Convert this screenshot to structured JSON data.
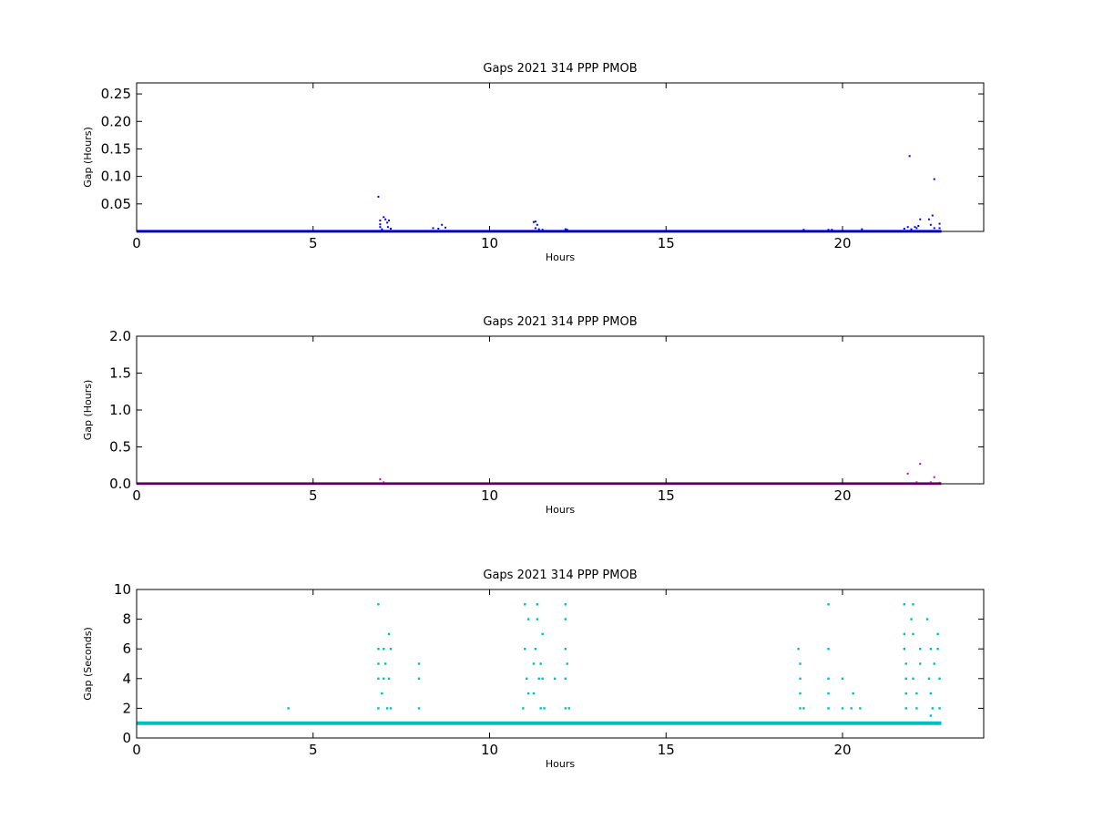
{
  "chart_data": [
    {
      "type": "scatter",
      "title": "Gaps 2021 314 PPP  PMOB",
      "xlabel": "Hours",
      "ylabel": "Gap (Hours)",
      "xlim": [
        0,
        24
      ],
      "ylim": [
        0,
        0.27
      ],
      "xticks": [
        0,
        5,
        10,
        15,
        20
      ],
      "xtick_labels": [
        "0",
        "5",
        "10",
        "15",
        "20"
      ],
      "yticks": [
        0.05,
        0.1,
        0.15,
        0.2,
        0.25
      ],
      "ytick_labels": [
        "0.05",
        "0.10",
        "0.15",
        "0.20",
        "0.25"
      ],
      "color": "#0000ff",
      "baseline": {
        "name": "baseline",
        "x_range": [
          0,
          22.8
        ],
        "y": 0.0003
      },
      "series": [
        {
          "points": [
            [
              6.85,
              0.063
            ],
            [
              6.9,
              0.02
            ],
            [
              6.9,
              0.013
            ],
            [
              6.9,
              0.008
            ],
            [
              6.95,
              0.004
            ],
            [
              7.0,
              0.026
            ],
            [
              7.05,
              0.022
            ],
            [
              7.1,
              0.016
            ],
            [
              7.15,
              0.02
            ],
            [
              7.12,
              0.008
            ],
            [
              7.2,
              0.005
            ],
            [
              8.4,
              0.006
            ],
            [
              8.55,
              0.005
            ],
            [
              8.65,
              0.012
            ],
            [
              8.75,
              0.007
            ],
            [
              11.25,
              0.017
            ],
            [
              11.3,
              0.018
            ],
            [
              11.35,
              0.012
            ],
            [
              11.3,
              0.006
            ],
            [
              11.4,
              0.004
            ],
            [
              11.5,
              0.003
            ],
            [
              12.15,
              0.004
            ],
            [
              12.2,
              0.003
            ],
            [
              18.9,
              0.003
            ],
            [
              19.6,
              0.003
            ],
            [
              19.7,
              0.003
            ],
            [
              20.55,
              0.004
            ],
            [
              21.75,
              0.005
            ],
            [
              21.85,
              0.008
            ],
            [
              21.9,
              0.137
            ],
            [
              21.95,
              0.004
            ],
            [
              22.05,
              0.008
            ],
            [
              22.15,
              0.01
            ],
            [
              22.2,
              0.022
            ],
            [
              22.1,
              0.006
            ],
            [
              22.45,
              0.022
            ],
            [
              22.5,
              0.012
            ],
            [
              22.55,
              0.029
            ],
            [
              22.6,
              0.095
            ],
            [
              22.6,
              0.006
            ],
            [
              22.75,
              0.014
            ],
            [
              22.75,
              0.006
            ]
          ]
        }
      ]
    },
    {
      "type": "scatter",
      "title": "Gaps 2021 314 PPP  PMOB",
      "xlabel": "Hours",
      "ylabel": "Gap (Hours)",
      "xlim": [
        0,
        24
      ],
      "ylim": [
        0,
        2.0
      ],
      "xticks": [
        0,
        5,
        10,
        15,
        20
      ],
      "xtick_labels": [
        "0",
        "5",
        "10",
        "15",
        "20"
      ],
      "yticks": [
        0.0,
        0.5,
        1.0,
        1.5,
        2.0
      ],
      "ytick_labels": [
        "0.0",
        "0.5",
        "1.0",
        "1.5",
        "2.0"
      ],
      "color": "#bf00bf",
      "baseline": {
        "name": "baseline",
        "x_range": [
          0,
          22.8
        ],
        "y": 0.003
      },
      "series": [
        {
          "points": [
            [
              6.9,
              0.063
            ],
            [
              7.0,
              0.02
            ],
            [
              21.85,
              0.138
            ],
            [
              22.2,
              0.27
            ],
            [
              22.1,
              0.02
            ],
            [
              22.5,
              0.02
            ],
            [
              22.6,
              0.09
            ],
            [
              22.75,
              0.014
            ]
          ]
        }
      ]
    },
    {
      "type": "scatter",
      "title": "Gaps 2021 314 PPP  PMOB",
      "xlabel": "Hours",
      "ylabel": "Gap (Seconds)",
      "xlim": [
        0,
        24
      ],
      "ylim": [
        0,
        10
      ],
      "xticks": [
        0,
        5,
        10,
        15,
        20
      ],
      "xtick_labels": [
        "0",
        "5",
        "10",
        "15",
        "20"
      ],
      "yticks": [
        0,
        2,
        4,
        6,
        8,
        10
      ],
      "ytick_labels": [
        "0",
        "2",
        "4",
        "6",
        "8",
        "10"
      ],
      "color": "#00bfbf",
      "baseline": {
        "name": "baseline",
        "x_range": [
          0,
          22.8
        ],
        "y": 1
      },
      "series": [
        {
          "points": [
            [
              4.3,
              2
            ],
            [
              6.85,
              9
            ],
            [
              6.85,
              6
            ],
            [
              6.85,
              5
            ],
            [
              6.85,
              4
            ],
            [
              6.85,
              2
            ],
            [
              6.95,
              3
            ],
            [
              7.0,
              6
            ],
            [
              7.05,
              5
            ],
            [
              7.0,
              4
            ],
            [
              7.1,
              2
            ],
            [
              7.15,
              4
            ],
            [
              7.15,
              7
            ],
            [
              7.2,
              6
            ],
            [
              7.2,
              2
            ],
            [
              8.0,
              5
            ],
            [
              8.0,
              4
            ],
            [
              8.0,
              2
            ],
            [
              10.95,
              2
            ],
            [
              11.0,
              9
            ],
            [
              11.0,
              6
            ],
            [
              11.05,
              4
            ],
            [
              11.1,
              8
            ],
            [
              11.1,
              3
            ],
            [
              11.25,
              5
            ],
            [
              11.25,
              3
            ],
            [
              11.3,
              6
            ],
            [
              11.35,
              8
            ],
            [
              11.35,
              9
            ],
            [
              11.4,
              4
            ],
            [
              11.45,
              5
            ],
            [
              11.45,
              2
            ],
            [
              11.5,
              7
            ],
            [
              11.5,
              4
            ],
            [
              11.55,
              2
            ],
            [
              11.85,
              4
            ],
            [
              12.15,
              9
            ],
            [
              12.15,
              8
            ],
            [
              12.15,
              6
            ],
            [
              12.15,
              4
            ],
            [
              12.15,
              2
            ],
            [
              12.2,
              5
            ],
            [
              12.25,
              2
            ],
            [
              18.75,
              6
            ],
            [
              18.8,
              5
            ],
            [
              18.8,
              4
            ],
            [
              18.8,
              3
            ],
            [
              18.8,
              2
            ],
            [
              18.9,
              2
            ],
            [
              19.6,
              9
            ],
            [
              19.6,
              6
            ],
            [
              19.6,
              4
            ],
            [
              19.6,
              3
            ],
            [
              19.6,
              2
            ],
            [
              20.0,
              4
            ],
            [
              20.0,
              2
            ],
            [
              20.25,
              2
            ],
            [
              20.3,
              3
            ],
            [
              20.5,
              2
            ],
            [
              21.75,
              9
            ],
            [
              21.75,
              7
            ],
            [
              21.75,
              6
            ],
            [
              21.8,
              5
            ],
            [
              21.8,
              4
            ],
            [
              21.8,
              3
            ],
            [
              21.8,
              2
            ],
            [
              21.95,
              8
            ],
            [
              22.0,
              9
            ],
            [
              22.0,
              7
            ],
            [
              22.0,
              4
            ],
            [
              22.1,
              3
            ],
            [
              22.1,
              2
            ],
            [
              22.2,
              6
            ],
            [
              22.2,
              5
            ],
            [
              22.4,
              8
            ],
            [
              22.45,
              4
            ],
            [
              22.5,
              6
            ],
            [
              22.5,
              3
            ],
            [
              22.55,
              2
            ],
            [
              22.6,
              5
            ],
            [
              22.7,
              7
            ],
            [
              22.7,
              6
            ],
            [
              22.75,
              4
            ],
            [
              22.75,
              2
            ],
            [
              22.5,
              1.5
            ]
          ]
        }
      ]
    }
  ]
}
